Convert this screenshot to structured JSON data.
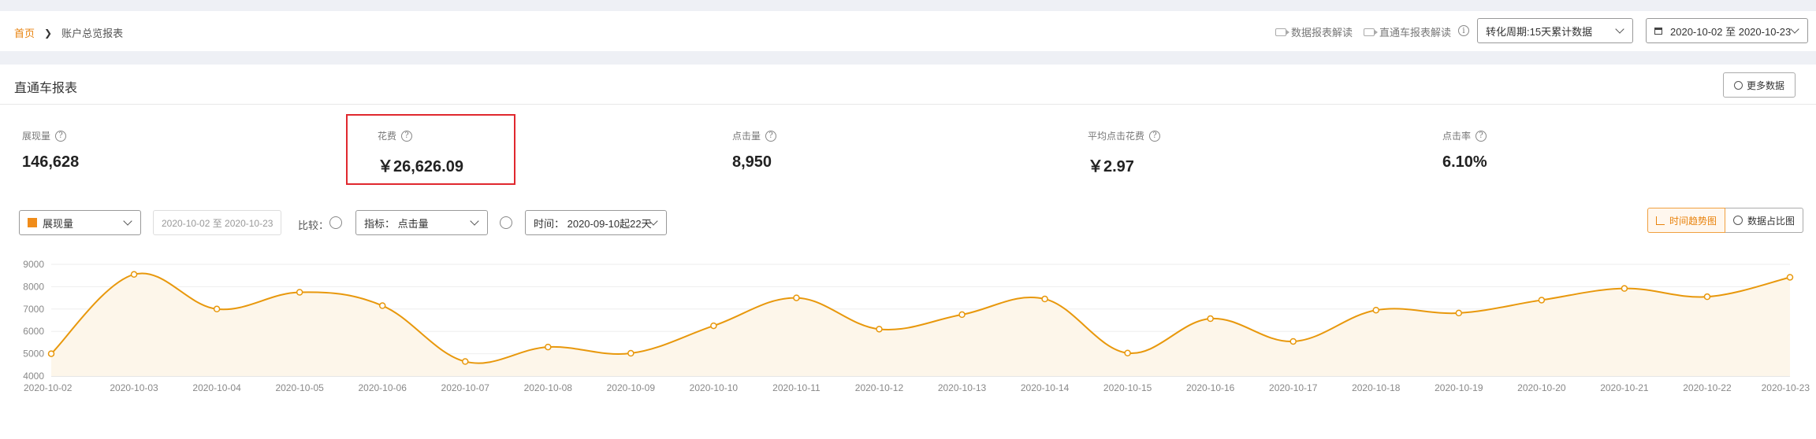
{
  "breadcrumb": {
    "home": "首页",
    "current": "账户总览报表"
  },
  "header": {
    "link_data_report": "数据报表解读",
    "link_ztc_report": "直通车报表解读",
    "conversion_select": "转化周期:15天累计数据",
    "date_range": "2020-10-02 至 2020-10-23"
  },
  "panel": {
    "title": "直通车报表",
    "more_button": "更多数据"
  },
  "metrics": [
    {
      "label": "展现量",
      "value": "146,628"
    },
    {
      "label": "花费",
      "value": "￥26,626.09"
    },
    {
      "label": "点击量",
      "value": "8,950"
    },
    {
      "label": "平均点击花费",
      "value": "￥2.97"
    },
    {
      "label": "点击率",
      "value": "6.10%"
    }
  ],
  "controls": {
    "metric_select": "展现量",
    "date_range": "2020-10-02 至 2020-10-23",
    "compare_label": "比较：",
    "indicator_select": "指标： 点击量",
    "time_select": "时间： 2020-09-10起22天",
    "view_trend": "时间趋势图",
    "view_share": "数据占比图"
  },
  "colors": {
    "accent": "#e8820c",
    "line": "#e8980c",
    "area": "#fdf6ea",
    "highlight": "#e0282e"
  },
  "chart_data": {
    "type": "area",
    "x": [
      "2020-10-02",
      "2020-10-03",
      "2020-10-04",
      "2020-10-05",
      "2020-10-06",
      "2020-10-07",
      "2020-10-08",
      "2020-10-09",
      "2020-10-10",
      "2020-10-11",
      "2020-10-12",
      "2020-10-13",
      "2020-10-14",
      "2020-10-15",
      "2020-10-16",
      "2020-10-17",
      "2020-10-18",
      "2020-10-19",
      "2020-10-20",
      "2020-10-21",
      "2020-10-22",
      "2020-10-23"
    ],
    "x_labels": [
      "2020-10-02",
      "2020-10-03",
      "2020-10-04",
      "2020-10-05",
      "2020-10-06",
      "2020-10-07",
      "2020-10-08",
      "2020-10-09",
      "2020-10-10",
      "2020-10-11",
      "2020-10-12",
      "2020-10-13",
      "2020-10-14",
      "2020-10-15",
      "2020-10-16",
      "2020-10-17",
      "2020-10-18",
      "2020-10-19",
      "2020-10-20",
      "2020-10-21",
      "2020-10-22",
      "2020-10-23"
    ],
    "series": [
      {
        "values": [
          5000,
          8550,
          7000,
          7750,
          7150,
          4650,
          5300,
          5020,
          6250,
          7500,
          6100,
          6750,
          7450,
          5030,
          6570,
          5550,
          6950,
          6820,
          7400,
          7920,
          7550,
          8420
        ]
      }
    ],
    "ylim": [
      4000,
      9000
    ],
    "y_ticks": [
      "4000",
      "5000",
      "6000",
      "7000",
      "8000",
      "9000"
    ],
    "grid": true
  }
}
